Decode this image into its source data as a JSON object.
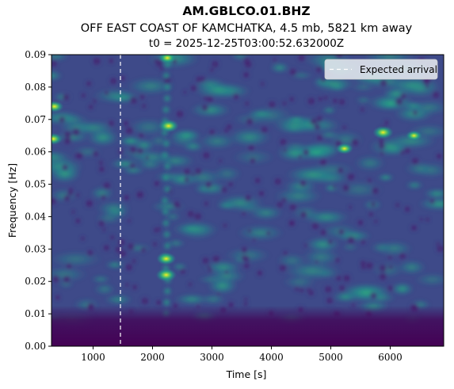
{
  "chart_data": {
    "type": "heatmap",
    "title": "AM.GBLCO.01.BHZ",
    "subtitle": "OFF EAST COAST OF KAMCHATKA, 4.5 mb, 5821 km away",
    "subtitle2": "t0 = 2025-12-25T03:00:52.632000Z",
    "xlabel": "Time [s]",
    "ylabel": "Frequency [Hz]",
    "xlim": [
      300,
      6900
    ],
    "ylim": [
      0.0,
      0.09
    ],
    "x_ticks": [
      1000,
      2000,
      3000,
      4000,
      5000,
      6000
    ],
    "x_tick_labels": [
      "1000",
      "2000",
      "3000",
      "4000",
      "5000",
      "6000"
    ],
    "y_ticks": [
      0.0,
      0.01,
      0.02,
      0.03,
      0.04,
      0.05,
      0.06,
      0.07,
      0.08,
      0.09
    ],
    "y_tick_labels": [
      "0.00",
      "0.01",
      "0.02",
      "0.03",
      "0.04",
      "0.05",
      "0.06",
      "0.07",
      "0.08",
      "0.09"
    ],
    "colormap": "viridis",
    "expected_arrival": {
      "time": 1460,
      "label": "Expected arrival",
      "style": "dashed",
      "color": "#ffffff"
    },
    "legend_placement": "top-right",
    "grid": false,
    "features": [
      {
        "t": 2230,
        "f": 0.022,
        "intensity": 0.95
      },
      {
        "t": 2230,
        "f": 0.027,
        "intensity": 0.9
      },
      {
        "t": 2270,
        "f": 0.068,
        "intensity": 0.95
      },
      {
        "t": 2250,
        "f": 0.089,
        "intensity": 0.8
      },
      {
        "t": 350,
        "f": 0.074,
        "intensity": 0.85
      },
      {
        "t": 330,
        "f": 0.064,
        "intensity": 0.85
      },
      {
        "t": 5880,
        "f": 0.066,
        "intensity": 0.95
      },
      {
        "t": 5230,
        "f": 0.061,
        "intensity": 0.8
      },
      {
        "t": 6400,
        "f": 0.065,
        "intensity": 0.75
      }
    ]
  },
  "colors": {
    "dark": "#440154",
    "arrival_line": "#ffffff",
    "legend_bg": "#dde3ea"
  }
}
